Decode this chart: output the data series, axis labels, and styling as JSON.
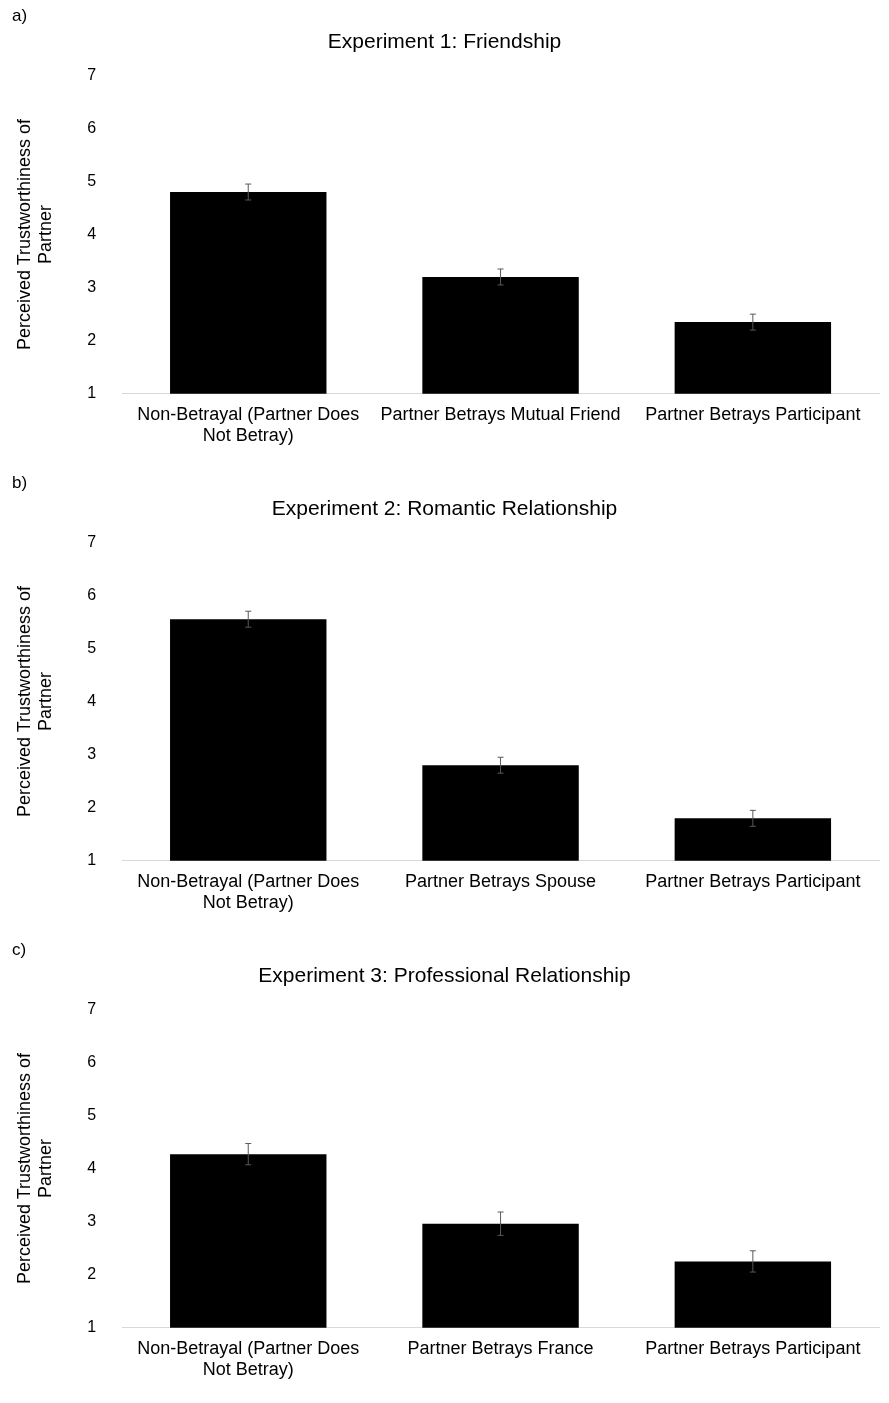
{
  "chart_data": [
    {
      "type": "bar",
      "title": "Experiment 1: Friendship",
      "ylabel": "Perceived Trustworthiness of Partner",
      "annotations": [
        "a)"
      ],
      "categories": [
        "Non-Betrayal (Partner Does Not Betray)",
        "Partner Betrays Mutual Friend",
        "Partner Betrays Participant"
      ],
      "values": [
        4.8,
        3.2,
        2.35
      ],
      "errors": [
        0.15,
        0.15,
        0.15
      ],
      "color": "#000000",
      "ylim": [
        1,
        7
      ],
      "yticks": [
        1,
        2,
        3,
        4,
        5,
        6,
        7
      ],
      "grid": false,
      "legend": false
    },
    {
      "type": "bar",
      "title": "Experiment 2: Romantic Relationship",
      "ylabel": "Perceived Trustworthiness of Partner",
      "annotations": [
        "b)"
      ],
      "categories": [
        "Non-Betrayal (Partner Does Not Betray)",
        "Partner Betrays Spouse",
        "Partner Betrays Participant"
      ],
      "values": [
        5.55,
        2.8,
        1.8
      ],
      "errors": [
        0.15,
        0.15,
        0.15
      ],
      "color": "#000000",
      "ylim": [
        1,
        7
      ],
      "yticks": [
        1,
        2,
        3,
        4,
        5,
        6,
        7
      ],
      "grid": false,
      "legend": false
    },
    {
      "type": "bar",
      "title": "Experiment 3: Professional Relationship",
      "ylabel": "Perceived Trustworthiness of Partner",
      "annotations": [
        "c)"
      ],
      "categories": [
        "Non-Betrayal (Partner Does Not Betray)",
        "Partner Betrays France",
        "Partner Betrays Participant"
      ],
      "values": [
        4.27,
        2.96,
        2.25
      ],
      "errors": [
        0.2,
        0.22,
        0.2
      ],
      "color": "#000000",
      "ylim": [
        1,
        7
      ],
      "yticks": [
        1,
        2,
        3,
        4,
        5,
        6,
        7
      ],
      "grid": false,
      "legend": false
    }
  ]
}
